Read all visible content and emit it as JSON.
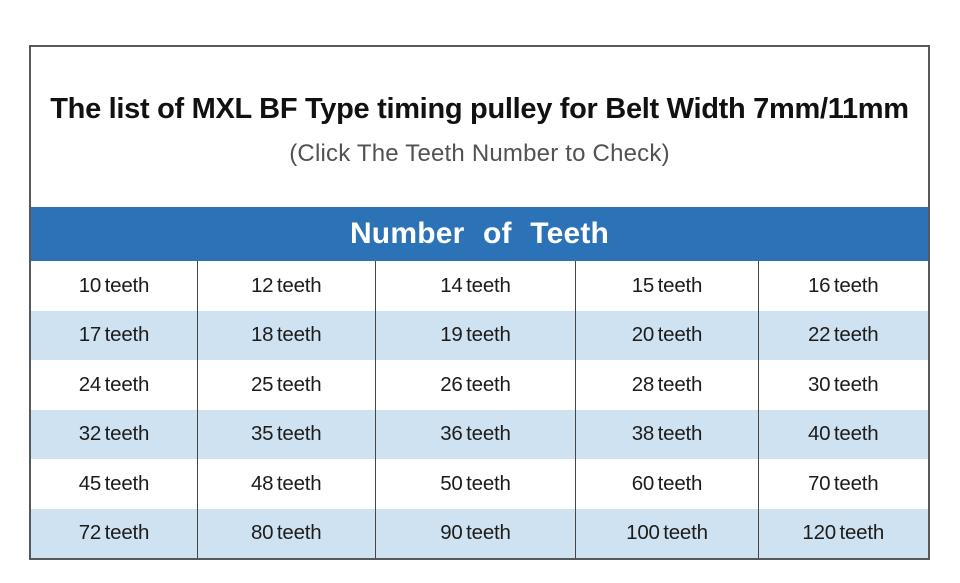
{
  "card": {
    "title": "The list of MXL BF Type timing pulley for Belt Width 7mm/11mm",
    "subtitle": "(Click The Teeth Number to Check)",
    "table": {
      "header": "Number of Teeth",
      "rows": [
        [
          "10 teeth",
          "12 teeth",
          "14 teeth",
          "15 teeth",
          "16 teeth"
        ],
        [
          "17 teeth",
          "18 teeth",
          "19 teeth",
          "20 teeth",
          "22 teeth"
        ],
        [
          "24 teeth",
          "25 teeth",
          "26 teeth",
          "28 teeth",
          "30 teeth"
        ],
        [
          "32 teeth",
          "35 teeth",
          "36 teeth",
          "38 teeth",
          "40 teeth"
        ],
        [
          "45 teeth",
          "48 teeth",
          "50 teeth",
          "60 teeth",
          "70 teeth"
        ],
        [
          "72 teeth",
          "80 teeth",
          "90 teeth",
          "100 teeth",
          "120 teeth"
        ]
      ]
    }
  },
  "colors": {
    "header_bg": "#2c72b7",
    "header_text": "#ffffff",
    "row_alt_bg": "#cfe2f1",
    "card_border": "#58595b",
    "divider": "#454545",
    "title_text": "#111111",
    "subtitle_text": "#525252",
    "cell_text": "#1c1c1c"
  }
}
